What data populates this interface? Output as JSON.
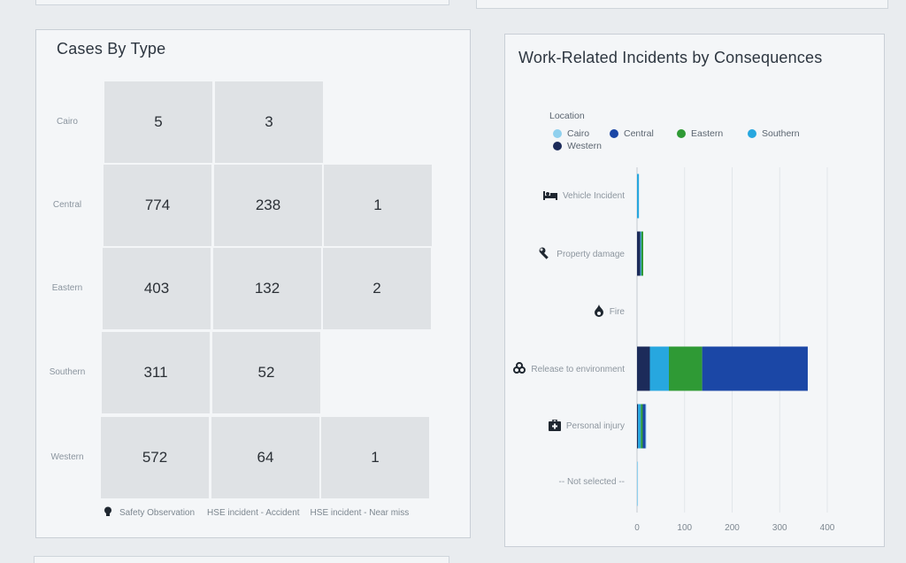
{
  "cases_card": {
    "title": "Cases By Type",
    "rows": [
      {
        "label": "Cairo",
        "values": [
          "5",
          "3",
          ""
        ]
      },
      {
        "label": "Central",
        "values": [
          "774",
          "238",
          "1"
        ]
      },
      {
        "label": "Eastern",
        "values": [
          "403",
          "132",
          "2"
        ]
      },
      {
        "label": "Southern",
        "values": [
          "311",
          "52",
          ""
        ]
      },
      {
        "label": "Western",
        "values": [
          "572",
          "64",
          "1"
        ]
      }
    ],
    "columns": [
      "Safety Observation",
      "HSE incident - Accident",
      "HSE incident - Near miss"
    ],
    "column_icon": "lightbulb-icon"
  },
  "incidents_card": {
    "title": "Work-Related Incidents by Consequences",
    "legend_title": "Location",
    "legend": [
      {
        "name": "Cairo",
        "color": "#8fd0ee"
      },
      {
        "name": "Central",
        "color": "#1b47a6"
      },
      {
        "name": "Eastern",
        "color": "#2f9a35"
      },
      {
        "name": "Southern",
        "color": "#27a7df"
      },
      {
        "name": "Western",
        "color": "#1c2b5a"
      }
    ],
    "categories": [
      {
        "label": "Vehicle Incident",
        "icon": "bed-icon"
      },
      {
        "label": "Property damage",
        "icon": "wrench-icon"
      },
      {
        "label": "Fire",
        "icon": "fire-icon"
      },
      {
        "label": "Release to environment",
        "icon": "biohazard-icon"
      },
      {
        "label": "Personal injury",
        "icon": "first-aid-icon"
      },
      {
        "label": "-- Not selected --",
        "icon": ""
      }
    ],
    "x_ticks": [
      "0",
      "100",
      "200",
      "300",
      "400"
    ]
  },
  "chart_data": {
    "type": "bar",
    "orientation": "horizontal",
    "stacked": true,
    "title": "Work-Related Incidents by Consequences",
    "legend_title": "Location",
    "categories": [
      "Vehicle Incident",
      "Property damage",
      "Fire",
      "Release to environment",
      "Personal injury",
      "-- Not selected --"
    ],
    "series": [
      {
        "name": "Western",
        "values": [
          0,
          7,
          0,
          27,
          2,
          0
        ]
      },
      {
        "name": "Southern",
        "values": [
          4,
          2,
          0,
          40,
          6,
          0
        ]
      },
      {
        "name": "Eastern",
        "values": [
          0,
          4,
          0,
          70,
          4,
          0
        ]
      },
      {
        "name": "Central",
        "values": [
          0,
          0,
          0,
          222,
          6,
          0
        ]
      },
      {
        "name": "Cairo",
        "values": [
          0,
          0,
          0,
          0,
          1,
          2
        ]
      }
    ],
    "xlim": [
      0,
      400
    ],
    "x_ticks": [
      0,
      100,
      200,
      300,
      400
    ],
    "grid": true,
    "legend_position": "top-left"
  }
}
